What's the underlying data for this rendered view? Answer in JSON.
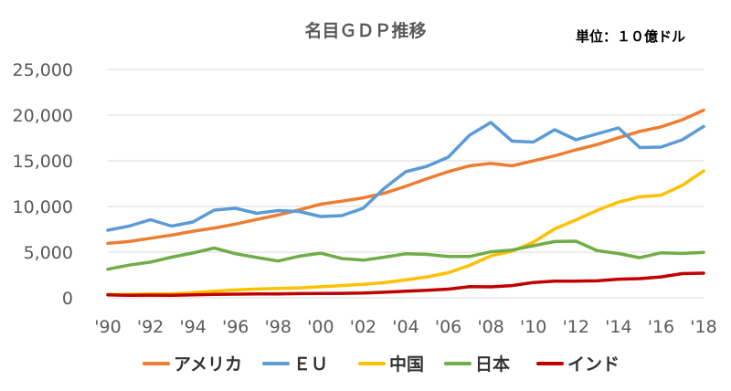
{
  "chart_data": {
    "type": "line",
    "title": "名目ＧＤＰ推移",
    "unit_label": "単位：１０億ドル",
    "xlabel": "",
    "ylabel": "",
    "ylim": [
      0,
      25000
    ],
    "y_ticks": [
      0,
      5000,
      10000,
      15000,
      20000,
      25000
    ],
    "y_tick_labels": [
      "0",
      "5,000",
      "10,000",
      "15,000",
      "20,000",
      "25,000"
    ],
    "x": [
      1990,
      1991,
      1992,
      1993,
      1994,
      1995,
      1996,
      1997,
      1998,
      1999,
      2000,
      2001,
      2002,
      2003,
      2004,
      2005,
      2006,
      2007,
      2008,
      2009,
      2010,
      2011,
      2012,
      2013,
      2014,
      2015,
      2016,
      2017,
      2018
    ],
    "x_ticks": [
      1990,
      1992,
      1994,
      1996,
      1998,
      2000,
      2002,
      2004,
      2006,
      2008,
      2010,
      2012,
      2014,
      2016,
      2018
    ],
    "x_tick_labels": [
      "'90",
      "'92",
      "'94",
      "'96",
      "'98",
      "'00",
      "'02",
      "'04",
      "'06",
      "'08",
      "'10",
      "'12",
      "'14",
      "'16",
      "'18"
    ],
    "grid": "horizontal",
    "legend_position": "bottom",
    "series": [
      {
        "name": "アメリカ",
        "color": "#ed7d31",
        "values": [
          5960,
          6160,
          6520,
          6860,
          7290,
          7640,
          8070,
          8580,
          9060,
          9630,
          10250,
          10580,
          10940,
          11460,
          12210,
          13040,
          13810,
          14450,
          14710,
          14450,
          14990,
          15540,
          16200,
          16780,
          17520,
          18220,
          18710,
          19490,
          20540
        ]
      },
      {
        "name": "ＥＵ",
        "color": "#5b9bd5",
        "values": [
          7400,
          7850,
          8550,
          7850,
          8300,
          9600,
          9800,
          9250,
          9550,
          9450,
          8900,
          9000,
          9800,
          12000,
          13800,
          14400,
          15400,
          17800,
          19200,
          17150,
          17050,
          18400,
          17300,
          17950,
          18600,
          16450,
          16500,
          17300,
          18750
        ]
      },
      {
        "name": "中国",
        "color": "#ffc000",
        "values": [
          360,
          380,
          430,
          440,
          560,
          730,
          860,
          960,
          1030,
          1090,
          1210,
          1340,
          1470,
          1660,
          1960,
          2290,
          2750,
          3550,
          4590,
          5100,
          6090,
          7550,
          8530,
          9570,
          10480,
          11060,
          11230,
          12310,
          13890
        ]
      },
      {
        "name": "日本",
        "color": "#70ad47",
        "values": [
          3130,
          3580,
          3910,
          4450,
          4910,
          5450,
          4830,
          4410,
          4030,
          4560,
          4890,
          4300,
          4120,
          4450,
          4820,
          4750,
          4530,
          4520,
          5040,
          5230,
          5700,
          6160,
          6200,
          5160,
          4850,
          4390,
          4930,
          4860,
          4970
        ]
      },
      {
        "name": "インド",
        "color": "#c00000",
        "values": [
          320,
          270,
          290,
          280,
          330,
          370,
          400,
          420,
          430,
          460,
          470,
          490,
          520,
          610,
          720,
          830,
          950,
          1220,
          1200,
          1340,
          1680,
          1820,
          1830,
          1860,
          2040,
          2100,
          2290,
          2650,
          2700
        ]
      }
    ]
  }
}
